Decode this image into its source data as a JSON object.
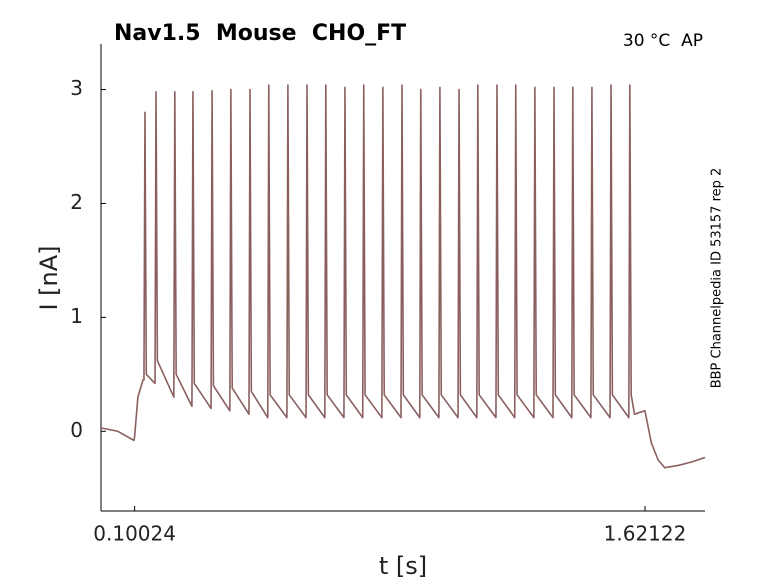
{
  "chart_data": {
    "type": "line",
    "title": "Nav1.5  Mouse  CHO_FT",
    "subtitle": "30 °C  AP",
    "annotation": "BBP Channelpedia ID 53157 rep 2",
    "x_label": "t [s]",
    "y_label": "I [nA]",
    "color": "#8c5f5f",
    "xlim": [
      0,
      1.8
    ],
    "ylim": [
      -0.7,
      3.4
    ],
    "xticks": [
      0.10024,
      1.62122
    ],
    "yticks": [
      0,
      1,
      2,
      3
    ],
    "x": [
      0,
      0.05,
      0.098,
      0.1,
      0.11,
      0.125,
      0.128,
      0.131,
      0.135,
      0.161,
      0.164,
      0.168,
      0.217,
      0.22,
      0.224,
      0.271,
      0.274,
      0.278,
      0.328,
      0.331,
      0.335,
      0.384,
      0.387,
      0.391,
      0.441,
      0.444,
      0.448,
      0.497,
      0.5,
      0.504,
      0.554,
      0.557,
      0.561,
      0.611,
      0.614,
      0.618,
      0.667,
      0.67,
      0.674,
      0.724,
      0.727,
      0.731,
      0.78,
      0.783,
      0.787,
      0.837,
      0.84,
      0.844,
      0.894,
      0.897,
      0.901,
      0.95,
      0.953,
      0.957,
      1.007,
      1.01,
      1.014,
      1.064,
      1.067,
      1.071,
      1.12,
      1.123,
      1.127,
      1.177,
      1.18,
      1.184,
      1.233,
      1.236,
      1.24,
      1.29,
      1.293,
      1.297,
      1.347,
      1.35,
      1.354,
      1.403,
      1.406,
      1.41,
      1.46,
      1.463,
      1.467,
      1.517,
      1.52,
      1.524,
      1.573,
      1.576,
      1.58,
      1.59,
      1.621,
      1.64,
      1.66,
      1.68,
      1.72,
      1.76,
      1.8
    ],
    "values": [
      0.03,
      0.0,
      -0.08,
      -0.05,
      0.3,
      0.45,
      0.45,
      2.8,
      0.5,
      0.42,
      2.98,
      0.62,
      0.3,
      2.98,
      0.5,
      0.22,
      2.98,
      0.42,
      0.2,
      2.99,
      0.4,
      0.18,
      3.0,
      0.38,
      0.15,
      3.0,
      0.35,
      0.12,
      3.04,
      0.32,
      0.12,
      3.04,
      0.32,
      0.12,
      3.04,
      0.32,
      0.12,
      3.04,
      0.32,
      0.12,
      3.02,
      0.32,
      0.12,
      3.04,
      0.32,
      0.12,
      3.02,
      0.32,
      0.12,
      3.04,
      0.32,
      0.12,
      3.0,
      0.32,
      0.12,
      3.02,
      0.32,
      0.12,
      3.0,
      0.32,
      0.12,
      3.04,
      0.32,
      0.12,
      3.04,
      0.32,
      0.12,
      3.04,
      0.32,
      0.12,
      3.02,
      0.32,
      0.12,
      3.02,
      0.32,
      0.12,
      3.02,
      0.32,
      0.12,
      3.02,
      0.32,
      0.12,
      3.04,
      0.32,
      0.12,
      3.04,
      0.32,
      0.15,
      0.18,
      -0.1,
      -0.25,
      -0.32,
      -0.3,
      -0.27,
      -0.23
    ]
  }
}
